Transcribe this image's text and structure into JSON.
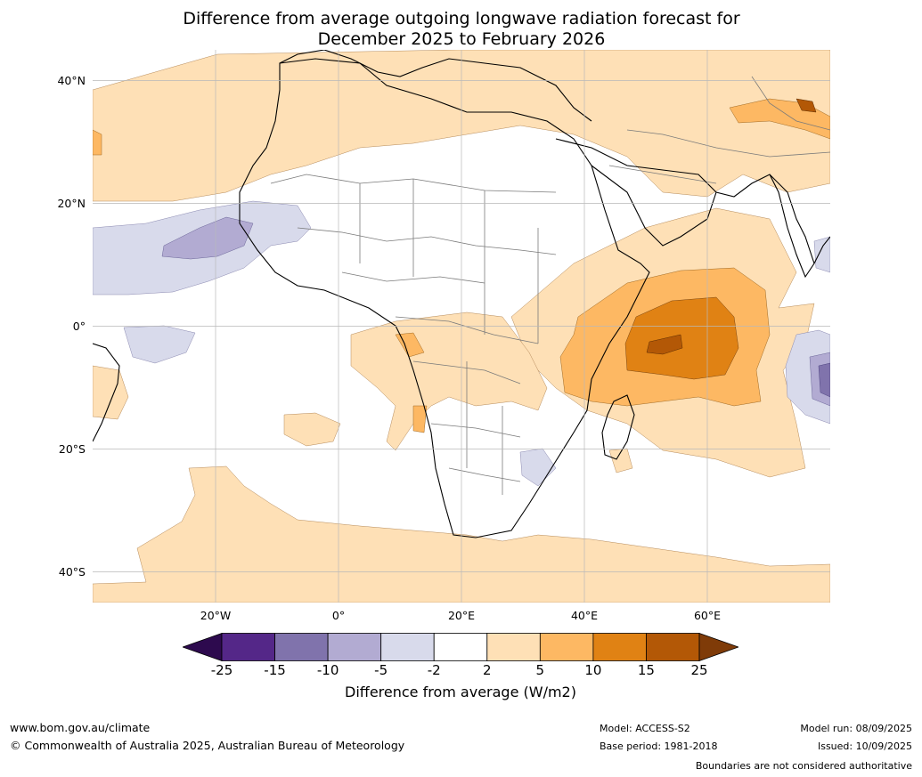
{
  "title_line1": "Difference from average outgoing longwave radiation forecast for",
  "title_line2": "December 2025 to February 2026",
  "lat_labels": [
    {
      "text": "40°N",
      "lat": 40
    },
    {
      "text": "20°N",
      "lat": 20
    },
    {
      "text": "0°",
      "lat": 0
    },
    {
      "text": "20°S",
      "lat": -20
    },
    {
      "text": "40°S",
      "lat": -40
    }
  ],
  "lon_labels": [
    {
      "text": "20°W",
      "lon": -20
    },
    {
      "text": "0°",
      "lon": 0
    },
    {
      "text": "20°E",
      "lon": 20
    },
    {
      "text": "40°E",
      "lon": 40
    },
    {
      "text": "60°E",
      "lon": 60
    }
  ],
  "extent": {
    "lon_min": -40,
    "lon_max": 80,
    "lat_min": -45,
    "lat_max": 45
  },
  "colorbar": {
    "ticks": [
      "-25",
      "-15",
      "-10",
      "-5",
      "-2",
      "2",
      "5",
      "10",
      "15",
      "25"
    ],
    "under_color": "#2d0a4e",
    "over_color": "#7f3b08",
    "colors": [
      "#542788",
      "#8073ac",
      "#b2abd2",
      "#d8daeb",
      "#ffffff",
      "#fee0b6",
      "#fdb863",
      "#e08214",
      "#b35806"
    ],
    "label": "Difference from average (W/m2)"
  },
  "footer": {
    "website": "www.bom.gov.au/climate",
    "copyright": "© Commonwealth of Australia 2025, Australian Bureau of Meteorology",
    "model": "Model: ACCESS-S2",
    "base_period": "Base period: 1981-2018",
    "model_run": "Model run: 08/09/2025",
    "issued": "Issued: 10/09/2025",
    "disclaimer": "Boundaries are not considered authoritative"
  }
}
